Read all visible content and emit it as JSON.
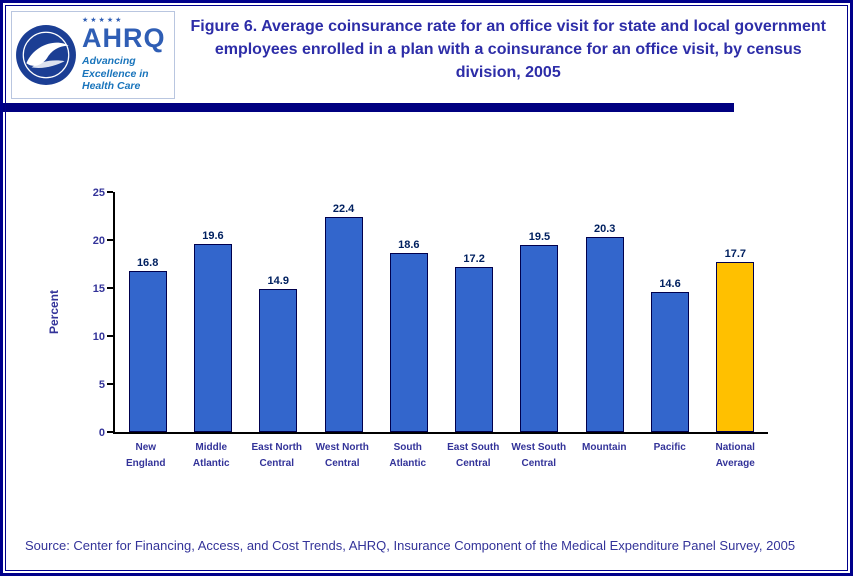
{
  "header": {
    "logo": {
      "stars": "★★★★★",
      "acronym": "AHRQ",
      "tagline_line1": "Advancing",
      "tagline_line2": "Excellence in",
      "tagline_line3": "Health Care"
    },
    "title": "Figure 6. Average coinsurance rate for an office visit for state and local government  employees enrolled in a plan with a coinsurance for an office visit, by census division, 2005"
  },
  "chart_data": {
    "type": "bar",
    "title": "Figure 6. Average coinsurance rate for an office visit for state and local government employees enrolled in a plan with a coinsurance for an office visit, by census division, 2005",
    "xlabel": "",
    "ylabel": "Percent",
    "ylim": [
      0,
      25
    ],
    "yticks": [
      0,
      5,
      10,
      15,
      20,
      25
    ],
    "grid": false,
    "legend": "none",
    "categories": [
      "New England",
      "Middle Atlantic",
      "East North Central",
      "West North Central",
      "South Atlantic",
      "East South Central",
      "West South Central",
      "Mountain",
      "Pacific",
      "National Average"
    ],
    "category_lines": [
      [
        "New",
        "England"
      ],
      [
        "Middle",
        "Atlantic"
      ],
      [
        "East North",
        "Central"
      ],
      [
        "West North",
        "Central"
      ],
      [
        "South",
        "Atlantic"
      ],
      [
        "East South",
        "Central"
      ],
      [
        "West South",
        "Central"
      ],
      [
        "Mountain"
      ],
      [
        "Pacific"
      ],
      [
        "National",
        "Average"
      ]
    ],
    "values": [
      16.8,
      19.6,
      14.9,
      22.4,
      18.6,
      17.2,
      19.5,
      20.3,
      14.6,
      17.7
    ],
    "bar_color": "#3366CC",
    "bar_border_color": "#00004D",
    "highlight_index": 9,
    "highlight_color": "#FFC000"
  },
  "footer": {
    "source": "Source: Center for Financing, Access, and Cost Trends, AHRQ, Insurance Component of the Medical Expenditure Panel Survey, 2005"
  },
  "colors": {
    "title_text": "#2D2DA8",
    "axis_text": "#333399",
    "value_text": "#002060",
    "divider": "#000080",
    "page_border": "#00008B"
  }
}
